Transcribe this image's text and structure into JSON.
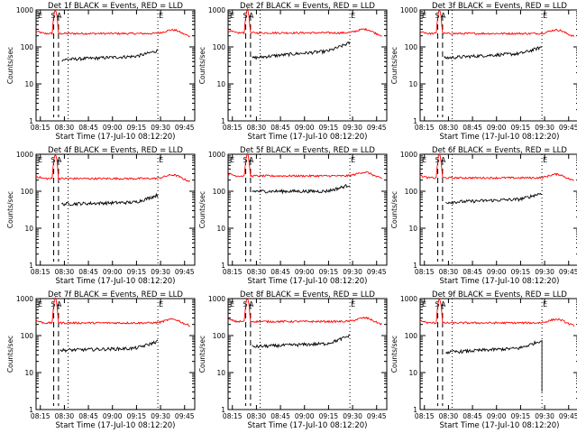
{
  "chart_data": {
    "type": "line",
    "ylabel": "Counts/sec",
    "xlabel": "Start Time (17-Jul-10 08:12:20)",
    "x_ticks": [
      "08:15",
      "08:30",
      "08:45",
      "09:00",
      "09:15",
      "09:30",
      "09:45"
    ],
    "x_tick_minutes": [
      2.67,
      17.67,
      32.67,
      47.67,
      62.67,
      77.67,
      92.67
    ],
    "x_range_minutes": [
      0,
      99
    ],
    "y_scale": "log",
    "y_range": [
      1,
      1000
    ],
    "y_ticks": [
      "1",
      "10",
      "100",
      "1000"
    ],
    "y_tick_values": [
      1,
      10,
      100,
      1000
    ],
    "grid": false,
    "colors": {
      "events": "#000000",
      "lld": "#ff0000",
      "axes": "#000000"
    },
    "markers": {
      "E": "E",
      "S": "S",
      "A": "A"
    },
    "panels": [
      {
        "title": "Det 1f BLACK = Events, RED = LLD",
        "events_start": [
          16,
          45
        ],
        "events_mid": [
          60,
          55
        ],
        "events_end": [
          76,
          80
        ],
        "lld_level": 230,
        "dash_x": [
          11,
          14
        ],
        "dot_x": [
          20,
          76
        ]
      },
      {
        "title": "Det 2f BLACK = Events, RED = LLD",
        "events_start": [
          15,
          50
        ],
        "events_mid": [
          60,
          75
        ],
        "events_end": [
          76,
          130
        ],
        "lld_level": 240,
        "dash_x": [
          11,
          14
        ],
        "dot_x": [
          20,
          76
        ]
      },
      {
        "title": "Det 3f BLACK = Events, RED = LLD",
        "events_start": [
          15,
          50
        ],
        "events_mid": [
          60,
          65
        ],
        "events_end": [
          76,
          100
        ],
        "lld_level": 230,
        "dash_x": [
          11,
          14
        ],
        "dot_x": [
          20,
          76
        ]
      },
      {
        "title": "Det 4f BLACK = Events, RED = LLD",
        "events_start": [
          16,
          45
        ],
        "events_mid": [
          60,
          50
        ],
        "events_end": [
          76,
          80
        ],
        "lld_level": 220,
        "dash_x": [
          11,
          14
        ],
        "dot_x": [
          20,
          76
        ]
      },
      {
        "title": "Det 5f BLACK = Events, RED = LLD",
        "events_start": [
          15,
          100
        ],
        "events_mid": [
          60,
          100
        ],
        "events_end": [
          76,
          150
        ],
        "lld_level": 260,
        "dash_x": [
          11,
          14
        ],
        "dot_x": [
          20,
          76
        ]
      },
      {
        "title": "Det 6f BLACK = Events, RED = LLD",
        "events_start": [
          16,
          50
        ],
        "events_mid": [
          60,
          60
        ],
        "events_end": [
          76,
          90
        ],
        "lld_level": 230,
        "dash_x": [
          11,
          14
        ],
        "dot_x": [
          20,
          76
        ]
      },
      {
        "title": "Det 7f BLACK = Events, RED = LLD",
        "events_start": [
          15,
          40
        ],
        "events_mid": [
          60,
          45
        ],
        "events_end": [
          76,
          70
        ],
        "lld_level": 220,
        "dash_x": [
          11,
          14
        ],
        "dot_x": [
          20,
          76
        ]
      },
      {
        "title": "Det 8f BLACK = Events, RED = LLD",
        "events_start": [
          15,
          50
        ],
        "events_mid": [
          60,
          60
        ],
        "events_end": [
          76,
          100
        ],
        "lld_level": 240,
        "dash_x": [
          11,
          14
        ],
        "dot_x": [
          20,
          76
        ]
      },
      {
        "title": "Det 9f BLACK = Events, RED = LLD",
        "events_start": [
          16,
          35
        ],
        "events_mid": [
          60,
          45
        ],
        "events_end": [
          76,
          75
        ],
        "lld_level": 220,
        "dash_x": [
          11,
          14
        ],
        "dot_x": [
          20,
          76
        ],
        "drop_to": 3
      }
    ]
  }
}
